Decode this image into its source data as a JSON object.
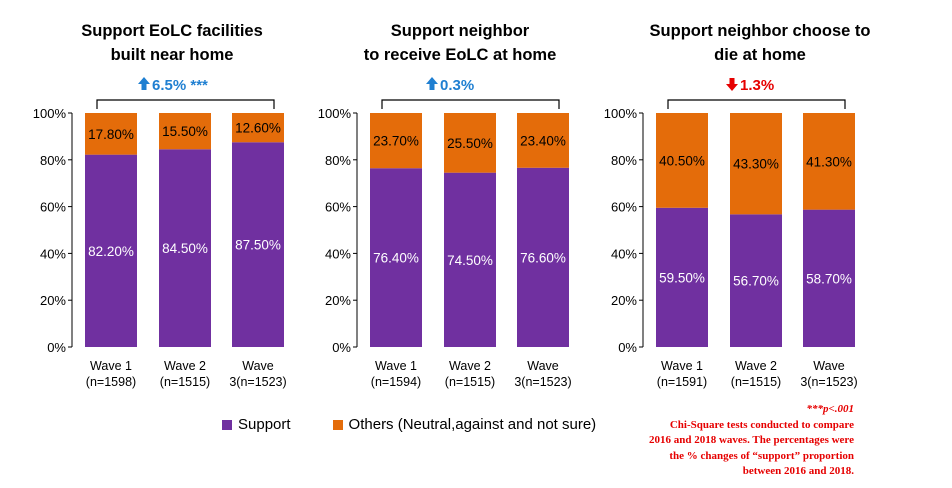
{
  "colors": {
    "support": "#7030a0",
    "others": "#e46c0a",
    "up": "#1f7fd1",
    "down": "#e60000"
  },
  "chart_data": [
    {
      "type": "bar",
      "stacked": true,
      "title_lines": [
        "Support EoLC facilities",
        "built near home"
      ],
      "change": {
        "direction": "up",
        "text": "6.5% ***"
      },
      "categories": [
        "Wave 1\n(n=1598)",
        "Wave 2\n(n=1515)",
        "Wave\n3(n=1523)"
      ],
      "series": [
        {
          "name": "Support",
          "values": [
            82.2,
            84.5,
            87.5
          ],
          "labels": [
            "82.20%",
            "84.50%",
            "87.50%"
          ]
        },
        {
          "name": "Others (Neutral,against and not sure)",
          "values": [
            17.8,
            15.5,
            12.6
          ],
          "labels": [
            "17.80%",
            "15.50%",
            "12.60%"
          ]
        }
      ],
      "ylim": [
        0,
        100
      ],
      "yticks": [
        "0%",
        "20%",
        "40%",
        "60%",
        "80%",
        "100%"
      ]
    },
    {
      "type": "bar",
      "stacked": true,
      "title_lines": [
        "Support neighbor",
        "to receive EoLC at home"
      ],
      "change": {
        "direction": "up",
        "text": "0.3%"
      },
      "categories": [
        "Wave 1\n(n=1594)",
        "Wave 2\n(n=1515)",
        "Wave\n3(n=1523)"
      ],
      "series": [
        {
          "name": "Support",
          "values": [
            76.4,
            74.5,
            76.6
          ],
          "labels": [
            "76.40%",
            "74.50%",
            "76.60%"
          ]
        },
        {
          "name": "Others (Neutral,against and not sure)",
          "values": [
            23.7,
            25.5,
            23.4
          ],
          "labels": [
            "23.70%",
            "25.50%",
            "23.40%"
          ]
        }
      ],
      "ylim": [
        0,
        100
      ],
      "yticks": [
        "0%",
        "20%",
        "40%",
        "60%",
        "80%",
        "100%"
      ]
    },
    {
      "type": "bar",
      "stacked": true,
      "title_lines": [
        "Support neighbor choose to",
        "die at home"
      ],
      "change": {
        "direction": "down",
        "text": "1.3%"
      },
      "categories": [
        "Wave 1\n(n=1591)",
        "Wave 2\n(n=1515)",
        "Wave\n3(n=1523)"
      ],
      "series": [
        {
          "name": "Support",
          "values": [
            59.5,
            56.7,
            58.7
          ],
          "labels": [
            "59.50%",
            "56.70%",
            "58.70%"
          ]
        },
        {
          "name": "Others (Neutral,against and not sure)",
          "values": [
            40.5,
            43.3,
            41.3
          ],
          "labels": [
            "40.50%",
            "43.30%",
            "41.30%"
          ]
        }
      ],
      "ylim": [
        0,
        100
      ],
      "yticks": [
        "0%",
        "20%",
        "40%",
        "60%",
        "80%",
        "100%"
      ]
    }
  ],
  "legend": [
    {
      "label": "Support",
      "color": "#7030a0"
    },
    {
      "label": "Others (Neutral,against and not sure)",
      "color": "#e46c0a"
    }
  ],
  "footnote": {
    "significance": "***p<.001",
    "lines": [
      "Chi-Square tests conducted to compare",
      "2016 and 2018 waves. The percentages were",
      "the % changes of “support” proportion",
      "between 2016 and 2018."
    ]
  }
}
